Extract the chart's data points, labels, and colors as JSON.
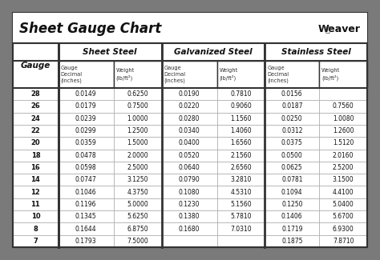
{
  "title": "Sheet Gauge Chart",
  "bg_outer": "#7a7a7a",
  "bg_inner": "#ffffff",
  "header_bg": "#ffffff",
  "row_bg": "#ffffff",
  "border_light": "#aaaaaa",
  "border_dark": "#333333",
  "border_thick": "#333333",
  "gauges": [
    28,
    26,
    24,
    22,
    20,
    18,
    16,
    14,
    12,
    11,
    10,
    8,
    7
  ],
  "sheet_steel": {
    "decimal": [
      "0.0149",
      "0.0179",
      "0.0239",
      "0.0299",
      "0.0359",
      "0.0478",
      "0.0598",
      "0.0747",
      "0.1046",
      "0.1196",
      "0.1345",
      "0.1644",
      "0.1793"
    ],
    "weight": [
      "0.6250",
      "0.7500",
      "1.0000",
      "1.2500",
      "1.5000",
      "2.0000",
      "2.5000",
      "3.1250",
      "4.3750",
      "5.0000",
      "5.6250",
      "6.8750",
      "7.5000"
    ]
  },
  "galvanized_steel": {
    "decimal": [
      "0.0190",
      "0.0220",
      "0.0280",
      "0.0340",
      "0.0400",
      "0.0520",
      "0.0640",
      "0.0790",
      "0.1080",
      "0.1230",
      "0.1380",
      "0.1680",
      ""
    ],
    "weight": [
      "0.7810",
      "0.9060",
      "1.1560",
      "1.4060",
      "1.6560",
      "2.1560",
      "2.6560",
      "3.2810",
      "4.5310",
      "5.1560",
      "5.7810",
      "7.0310",
      ""
    ]
  },
  "stainless_steel": {
    "decimal": [
      "0.0156",
      "0.0187",
      "0.0250",
      "0.0312",
      "0.0375",
      "0.0500",
      "0.0625",
      "0.0781",
      "0.1094",
      "0.1250",
      "0.1406",
      "0.1719",
      "0.1875"
    ],
    "weight": [
      "",
      "0.7560",
      "1.0080",
      "1.2600",
      "1.5120",
      "2.0160",
      "2.5200",
      "3.1500",
      "4.4100",
      "5.0400",
      "5.6700",
      "6.9300",
      "7.8710"
    ]
  }
}
